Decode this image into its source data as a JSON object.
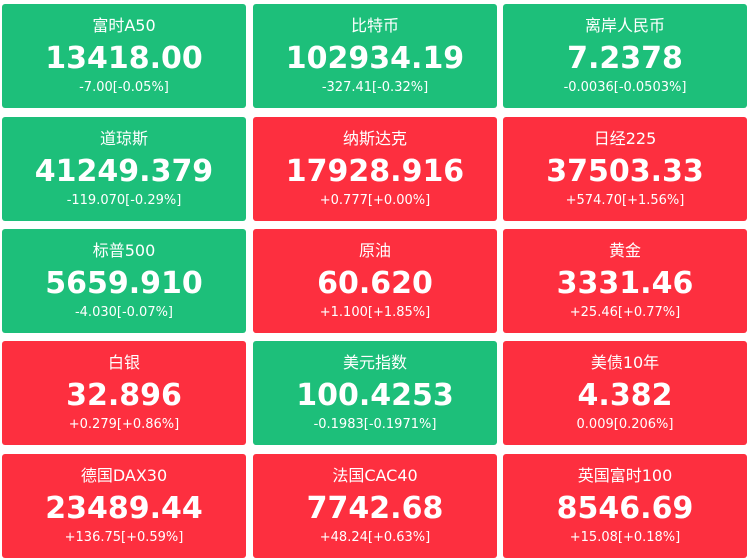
{
  "tiles": [
    {
      "name": "富时A50",
      "price": "13418.00",
      "change": "-7.00[-0.05%]",
      "color": "#1dbf7a"
    },
    {
      "name": "比特币",
      "price": "102934.19",
      "change": "-327.41[-0.32%]",
      "color": "#1dbf7a"
    },
    {
      "name": "离岸人民币",
      "price": "7.2378",
      "change": "-0.0036[-0.0503%]",
      "color": "#1dbf7a"
    },
    {
      "name": "道琼斯",
      "price": "41249.379",
      "change": "-119.070[-0.29%]",
      "color": "#1dbf7a"
    },
    {
      "name": "纳斯达克",
      "price": "17928.916",
      "change": "+0.777[+0.00%]",
      "color": "#fd2f3f"
    },
    {
      "name": "日经225",
      "price": "37503.33",
      "change": "+574.70[+1.56%]",
      "color": "#fd2f3f"
    },
    {
      "name": "标普500",
      "price": "5659.910",
      "change": "-4.030[-0.07%]",
      "color": "#1dbf7a"
    },
    {
      "name": "原油",
      "price": "60.620",
      "change": "+1.100[+1.85%]",
      "color": "#fd2f3f"
    },
    {
      "name": "黄金",
      "price": "3331.46",
      "change": "+25.46[+0.77%]",
      "color": "#fd2f3f"
    },
    {
      "name": "白银",
      "price": "32.896",
      "change": "+0.279[+0.86%]",
      "color": "#fd2f3f"
    },
    {
      "name": "美元指数",
      "price": "100.4253",
      "change": "-0.1983[-0.1971%]",
      "color": "#1dbf7a"
    },
    {
      "name": "美债10年",
      "price": "4.382",
      "change": "0.009[0.206%]",
      "color": "#fd2f3f"
    },
    {
      "name": "德国DAX30",
      "price": "23489.44",
      "change": "+136.75[+0.59%]",
      "color": "#fd2f3f"
    },
    {
      "name": "法国CAC40",
      "price": "7742.68",
      "change": "+48.24[+0.63%]",
      "color": "#fd2f3f"
    },
    {
      "name": "英国富时100",
      "price": "8546.69",
      "change": "+15.08[+0.18%]",
      "color": "#fd2f3f"
    }
  ]
}
